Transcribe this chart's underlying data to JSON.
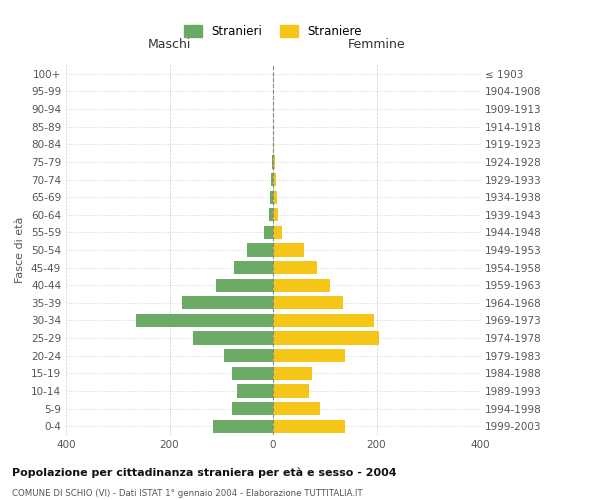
{
  "age_groups": [
    "0-4",
    "5-9",
    "10-14",
    "15-19",
    "20-24",
    "25-29",
    "30-34",
    "35-39",
    "40-44",
    "45-49",
    "50-54",
    "55-59",
    "60-64",
    "65-69",
    "70-74",
    "75-79",
    "80-84",
    "85-89",
    "90-94",
    "95-99",
    "100+"
  ],
  "birth_years": [
    "1999-2003",
    "1994-1998",
    "1989-1993",
    "1984-1988",
    "1979-1983",
    "1974-1978",
    "1969-1973",
    "1964-1968",
    "1959-1963",
    "1954-1958",
    "1949-1953",
    "1944-1948",
    "1939-1943",
    "1934-1938",
    "1929-1933",
    "1924-1928",
    "1919-1923",
    "1914-1918",
    "1909-1913",
    "1904-1908",
    "≤ 1903"
  ],
  "males": [
    115,
    80,
    70,
    80,
    95,
    155,
    265,
    175,
    110,
    75,
    50,
    18,
    7,
    5,
    3,
    2,
    0,
    0,
    0,
    0,
    0
  ],
  "females": [
    140,
    90,
    70,
    75,
    140,
    205,
    195,
    135,
    110,
    85,
    60,
    18,
    10,
    8,
    5,
    3,
    2,
    0,
    0,
    0,
    0
  ],
  "male_color": "#6aaa64",
  "female_color": "#f5c518",
  "male_label": "Stranieri",
  "female_label": "Straniere",
  "title": "Popolazione per cittadinanza straniera per età e sesso - 2004",
  "subtitle": "COMUNE DI SCHIO (VI) - Dati ISTAT 1° gennaio 2004 - Elaborazione TUTTITALIA.IT",
  "xlabel_left": "Maschi",
  "xlabel_right": "Femmine",
  "ylabel_left": "Fasce di età",
  "xlim": 400,
  "bg_color": "#ffffff",
  "grid_color": "#cccccc",
  "bar_height": 0.75
}
